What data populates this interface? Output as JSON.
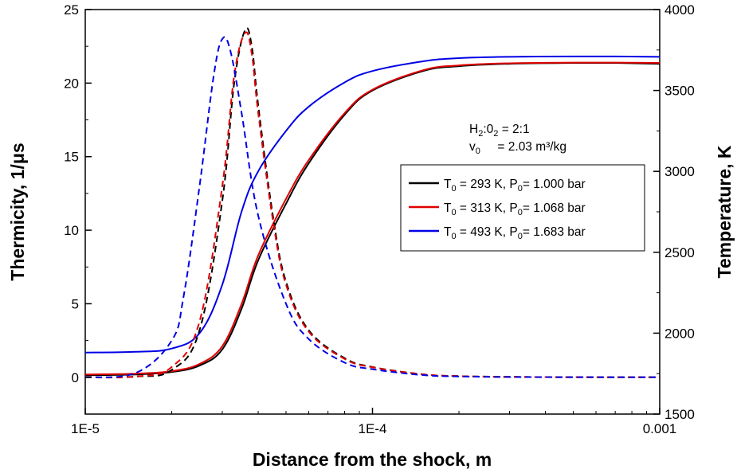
{
  "chart_data": {
    "type": "line",
    "xlabel": "Distance from the shock, m",
    "ylabel_left": "Thermicity, 1/μs",
    "ylabel_right": "Temperature, K",
    "xscale": "log",
    "xlim": [
      1e-05,
      0.001
    ],
    "ylim_left": [
      -2.5,
      25
    ],
    "ylim_right": [
      1500,
      4000
    ],
    "x_ticks": [
      {
        "value": 1e-05,
        "label": "1E-5"
      },
      {
        "value": 0.0001,
        "label": "1E-4"
      },
      {
        "value": 0.001,
        "label": "0.001"
      }
    ],
    "y_left_ticks": [
      {
        "value": 0,
        "label": "0"
      },
      {
        "value": 5,
        "label": "5"
      },
      {
        "value": 10,
        "label": "10"
      },
      {
        "value": 15,
        "label": "15"
      },
      {
        "value": 20,
        "label": "20"
      },
      {
        "value": 25,
        "label": "25"
      }
    ],
    "y_right_ticks": [
      {
        "value": 1500,
        "label": "1500"
      },
      {
        "value": 2000,
        "label": "2000"
      },
      {
        "value": 2500,
        "label": "2500"
      },
      {
        "value": 3000,
        "label": "3000"
      },
      {
        "value": 3500,
        "label": "3500"
      },
      {
        "value": 4000,
        "label": "4000"
      }
    ],
    "annotation": {
      "line1": {
        "H": "H",
        "h_sub": "2",
        "sep": ":",
        "O": "0",
        "o_sub": "2",
        "rest": " = 2:1"
      },
      "line2": {
        "v": "v",
        "v_sub": "0",
        "rest": "     = 2.03 m³/kg"
      }
    },
    "legend": {
      "placement": "right-middle",
      "entries": [
        {
          "color": "#000000",
          "t": "T",
          "t_sub": "0",
          "t_rest": " = 293 K, P",
          "p_sub": "0",
          "p_rest": "= 1.000 bar"
        },
        {
          "color": "#e00000",
          "t": "T",
          "t_sub": "0",
          "t_rest": " = 313 K, P",
          "p_sub": "0",
          "p_rest": "= 1.068 bar"
        },
        {
          "color": "#0000e6",
          "t": "T",
          "t_sub": "0",
          "t_rest": " = 493 K, P",
          "p_sub": "0",
          "p_rest": "= 1.683 bar"
        }
      ]
    },
    "series": [
      {
        "style": "solid",
        "axis": "right",
        "color": "#000000",
        "x": [
          1e-05,
          1.5e-05,
          2e-05,
          2.5e-05,
          3e-05,
          3.5e-05,
          4e-05,
          5e-05,
          6e-05,
          8e-05,
          0.0001,
          0.00015,
          0.0002,
          0.0003,
          0.0005,
          0.0007,
          0.001
        ],
        "values": [
          1740,
          1745,
          1760,
          1800,
          1900,
          2150,
          2450,
          2800,
          3050,
          3350,
          3500,
          3620,
          3650,
          3665,
          3670,
          3670,
          3665
        ]
      },
      {
        "style": "solid",
        "axis": "right",
        "color": "#e00000",
        "x": [
          1e-05,
          1.5e-05,
          2e-05,
          2.5e-05,
          3e-05,
          3.5e-05,
          4e-05,
          5e-05,
          6e-05,
          8e-05,
          0.0001,
          0.00015,
          0.0002,
          0.0003,
          0.0005,
          0.0007,
          0.001
        ],
        "values": [
          1745,
          1750,
          1765,
          1810,
          1920,
          2180,
          2480,
          2830,
          3070,
          3360,
          3505,
          3625,
          3655,
          3668,
          3672,
          3672,
          3670
        ]
      },
      {
        "style": "solid",
        "axis": "right",
        "color": "#0000e6",
        "x": [
          1e-05,
          1.5e-05,
          2e-05,
          2.5e-05,
          3e-05,
          3.5e-05,
          4e-05,
          5e-05,
          6e-05,
          8e-05,
          0.0001,
          0.00015,
          0.0002,
          0.0003,
          0.0005,
          0.0007,
          0.001
        ],
        "values": [
          1880,
          1885,
          1905,
          2000,
          2300,
          2750,
          3000,
          3250,
          3400,
          3550,
          3620,
          3680,
          3700,
          3708,
          3710,
          3710,
          3708
        ]
      },
      {
        "style": "dashed",
        "axis": "left",
        "color": "#000000",
        "x": [
          1e-05,
          1.5e-05,
          2e-05,
          2.5e-05,
          3e-05,
          3.3e-05,
          3.6e-05,
          3.8e-05,
          4e-05,
          4.5e-05,
          5e-05,
          6e-05,
          8e-05,
          0.0001,
          0.00015,
          0.0002,
          0.0003,
          0.0005,
          0.001
        ],
        "values": [
          0,
          0.05,
          0.5,
          3.2,
          12,
          20,
          23.6,
          22.5,
          18.5,
          11,
          6.5,
          3.2,
          1.3,
          0.7,
          0.2,
          0.08,
          0.03,
          0.01,
          0
        ]
      },
      {
        "style": "dashed",
        "axis": "left",
        "color": "#e00000",
        "x": [
          1e-05,
          1.5e-05,
          2e-05,
          2.5e-05,
          3e-05,
          3.3e-05,
          3.6e-05,
          3.8e-05,
          4e-05,
          4.5e-05,
          5e-05,
          6e-05,
          8e-05,
          0.0001,
          0.00015,
          0.0002,
          0.0003,
          0.0005,
          0.001
        ],
        "values": [
          0,
          0.05,
          0.7,
          3.8,
          13,
          20.5,
          23.4,
          22,
          18,
          10.7,
          6.3,
          3.1,
          1.25,
          0.68,
          0.2,
          0.08,
          0.03,
          0.01,
          0
        ]
      },
      {
        "style": "dashed",
        "axis": "left",
        "color": "#0000e6",
        "x": [
          1e-05,
          1.5e-05,
          2e-05,
          2.2e-05,
          2.5e-05,
          2.8e-05,
          3e-05,
          3.2e-05,
          3.5e-05,
          4e-05,
          5e-05,
          6e-05,
          8e-05,
          0.0001,
          0.00015,
          0.0002,
          0.0003,
          0.0005,
          0.001
        ],
        "values": [
          0,
          0.3,
          2.5,
          5.5,
          13,
          20.5,
          23,
          22.2,
          18,
          11,
          5,
          2.6,
          1.0,
          0.55,
          0.15,
          0.06,
          0.02,
          0.01,
          0
        ]
      }
    ]
  }
}
